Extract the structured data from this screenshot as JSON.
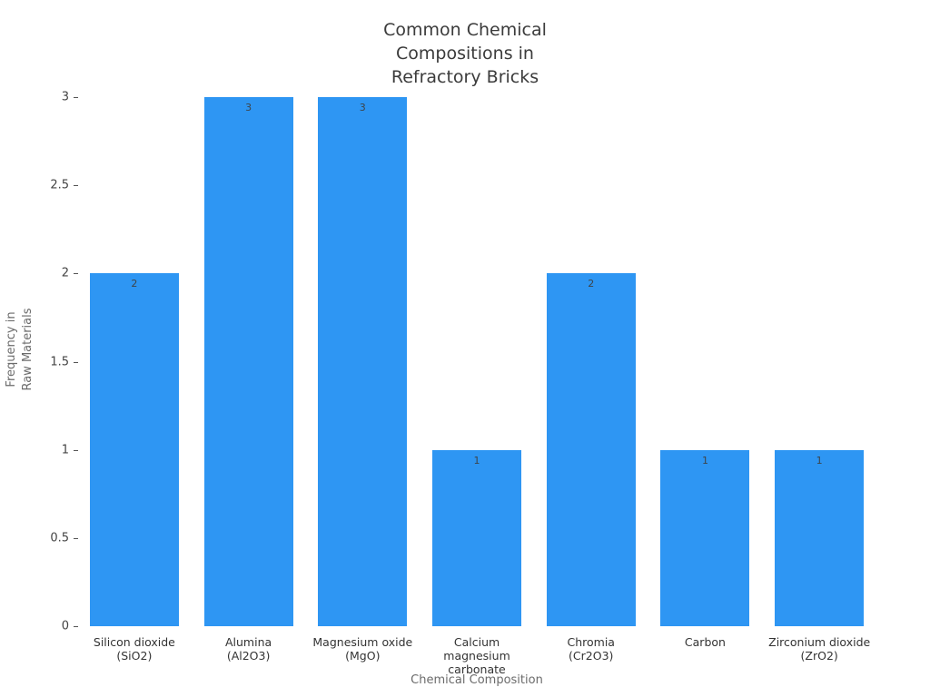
{
  "figure": {
    "background": "#ffffff"
  },
  "chart_data": {
    "type": "bar",
    "title": "Common Chemical Compositions in Refractory Bricks",
    "title_lines": [
      "Common Chemical",
      "Compositions in",
      "Refractory Bricks"
    ],
    "xlabel": "Chemical Composition",
    "ylabel": "Frequency in Raw Materials",
    "ylabel_lines": [
      "Frequency in",
      "Raw Materials"
    ],
    "categories": [
      "Silicon dioxide (SiO2)",
      "Alumina (Al2O3)",
      "Magnesium oxide (MgO)",
      "Calcium magnesium carbonate",
      "Chromia (Cr2O3)",
      "Carbon",
      "Zirconium dioxide (ZrO2)"
    ],
    "tick_label_lines": [
      [
        "Silicon dioxide",
        "(SiO2)"
      ],
      [
        "Alumina",
        "(Al2O3)"
      ],
      [
        "Magnesium oxide",
        "(MgO)"
      ],
      [
        "Calcium magnesium",
        "carbonate"
      ],
      [
        "Chromia",
        "(Cr2O3)"
      ],
      [
        "Carbon"
      ],
      [
        "Zirconium dioxide",
        "(ZrO2)"
      ]
    ],
    "values": [
      2,
      3,
      3,
      1,
      2,
      1,
      1
    ],
    "bar_labels": [
      "2",
      "3",
      "3",
      "1",
      "2",
      "1",
      "1"
    ],
    "ylim": [
      0,
      3
    ],
    "yticks": [
      0,
      0.5,
      1,
      1.5,
      2,
      2.5,
      3
    ],
    "ytick_labels": [
      "0",
      "0.5",
      "1",
      "1.5",
      "2",
      "2.5",
      "3"
    ],
    "bar_color": "#2e96f3",
    "value_label_color": "#3d4449",
    "grid": false,
    "legend": "none"
  }
}
